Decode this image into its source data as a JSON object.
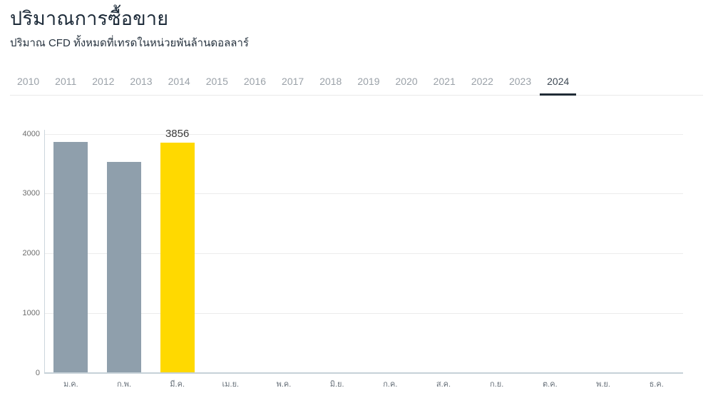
{
  "header": {
    "title": "ปริมาณการซื้อขาย",
    "subtitle": "ปริมาณ CFD ทั้งหมดที่เทรดในหน่วยพันล้านดอลลาร์"
  },
  "tabs": {
    "years": [
      "2010",
      "2011",
      "2012",
      "2013",
      "2014",
      "2015",
      "2016",
      "2017",
      "2018",
      "2019",
      "2020",
      "2021",
      "2022",
      "2023",
      "2024"
    ],
    "active": "2024"
  },
  "chart_data": {
    "type": "bar",
    "title": "ปริมาณการซื้อขาย",
    "subtitle": "ปริมาณ CFD ทั้งหมดที่เทรดในหน่วยพันล้านดอลลาร์",
    "categories": [
      "ม.ค.",
      "ก.พ.",
      "มี.ค.",
      "เม.ย.",
      "พ.ค.",
      "มิ.ย.",
      "ก.ค.",
      "ส.ค.",
      "ก.ย.",
      "ต.ค.",
      "พ.ย.",
      "ธ.ค."
    ],
    "values": [
      3870,
      3530,
      3856,
      null,
      null,
      null,
      null,
      null,
      null,
      null,
      null,
      null
    ],
    "bar_labels": [
      "",
      "",
      "3856",
      "",
      "",
      "",
      "",
      "",
      "",
      "",
      "",
      ""
    ],
    "highlight_index": 2,
    "yticks": [
      0,
      1000,
      2000,
      3000,
      4000
    ],
    "ylim": [
      0,
      4000
    ],
    "grid": "horizontal",
    "legend": "none",
    "colors": {
      "bar_default": "#8f9fac",
      "bar_highlight": "#ffd900",
      "active_tab_underline": "#202b36"
    }
  }
}
